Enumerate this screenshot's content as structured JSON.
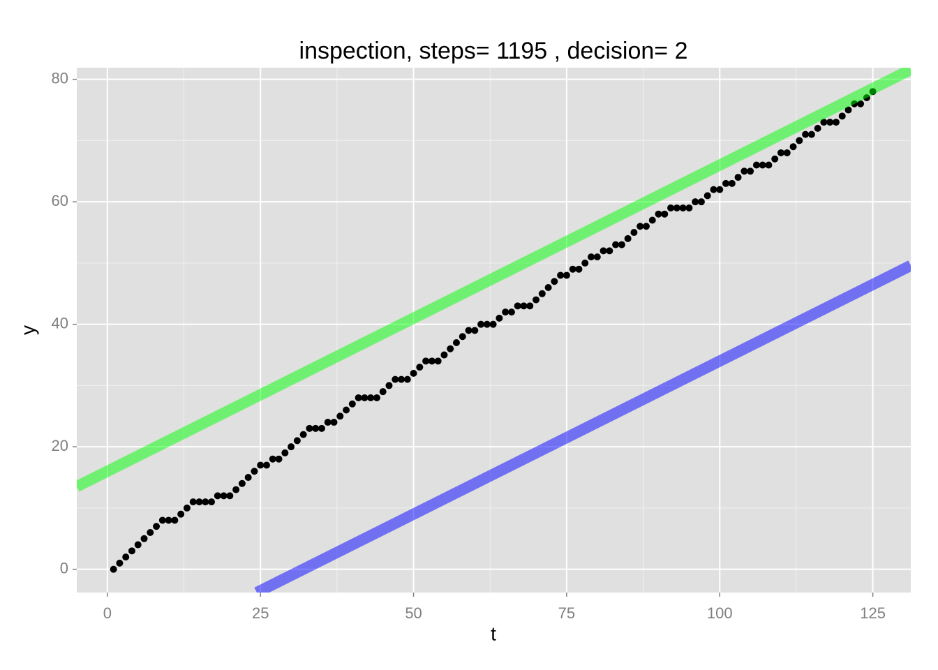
{
  "chart_data": {
    "type": "scatter",
    "title": "inspection, steps= 1195 , decision= 2",
    "x_label": "t",
    "y_label": "y",
    "xlim": [
      -5.0,
      131.2
    ],
    "ylim": [
      -3.8,
      81.9
    ],
    "xticks": [
      0,
      25,
      50,
      75,
      100,
      125
    ],
    "yticks": [
      0,
      20,
      40,
      60,
      80
    ],
    "minor_xticks": [
      12.5,
      37.5,
      62.5,
      87.5,
      112.5
    ],
    "minor_yticks": [
      10,
      30,
      50,
      70
    ],
    "grid": true,
    "points": {
      "color": "#000000",
      "x": [
        1,
        2,
        3,
        4,
        5,
        6,
        7,
        8,
        9,
        10,
        11,
        12,
        13,
        14,
        15,
        16,
        17,
        18,
        19,
        20,
        21,
        22,
        23,
        24,
        25,
        26,
        27,
        28,
        29,
        30,
        31,
        32,
        33,
        34,
        35,
        36,
        37,
        38,
        39,
        40,
        41,
        42,
        43,
        44,
        45,
        46,
        47,
        48,
        49,
        50,
        51,
        52,
        53,
        54,
        55,
        56,
        57,
        58,
        59,
        60,
        61,
        62,
        63,
        64,
        65,
        66,
        67,
        68,
        69,
        70,
        71,
        72,
        73,
        74,
        75,
        76,
        77,
        78,
        79,
        80,
        81,
        82,
        83,
        84,
        85,
        86,
        87,
        88,
        89,
        90,
        91,
        92,
        93,
        94,
        95,
        96,
        97,
        98,
        99,
        100,
        101,
        102,
        103,
        104,
        105,
        106,
        107,
        108,
        109,
        110,
        111,
        112,
        113,
        114,
        115,
        116,
        117,
        118,
        119,
        120,
        121,
        122,
        123,
        124,
        125
      ],
      "values": [
        0,
        1,
        2,
        3,
        4,
        5,
        6,
        7,
        8,
        8,
        8,
        9,
        10,
        11,
        11,
        11,
        11,
        12,
        12,
        12,
        13,
        14,
        15,
        16,
        17,
        17,
        18,
        18,
        19,
        20,
        21,
        22,
        23,
        23,
        23,
        24,
        24,
        25,
        26,
        27,
        28,
        28,
        28,
        28,
        29,
        30,
        31,
        31,
        31,
        32,
        33,
        34,
        34,
        34,
        35,
        36,
        37,
        38,
        39,
        39,
        40,
        40,
        40,
        41,
        42,
        42,
        43,
        43,
        43,
        44,
        45,
        46,
        47,
        48,
        48,
        49,
        49,
        50,
        51,
        51,
        52,
        52,
        53,
        53,
        54,
        55,
        56,
        56,
        57,
        58,
        58,
        59,
        59,
        59,
        59,
        60,
        60,
        61,
        62,
        62,
        63,
        63,
        64,
        65,
        65,
        66,
        66,
        66,
        67,
        68,
        68,
        69,
        70,
        71,
        71,
        72,
        73,
        73,
        73,
        74,
        75,
        76,
        76,
        77,
        78
      ]
    },
    "lines": [
      {
        "color": "#00ff00",
        "x": [
          -5.0,
          131.2
        ],
        "values": [
          13.5,
          81.6
        ]
      },
      {
        "color": "#0000ff",
        "x": [
          24.4,
          131.2
        ],
        "values": [
          -3.8,
          49.6
        ]
      }
    ]
  }
}
